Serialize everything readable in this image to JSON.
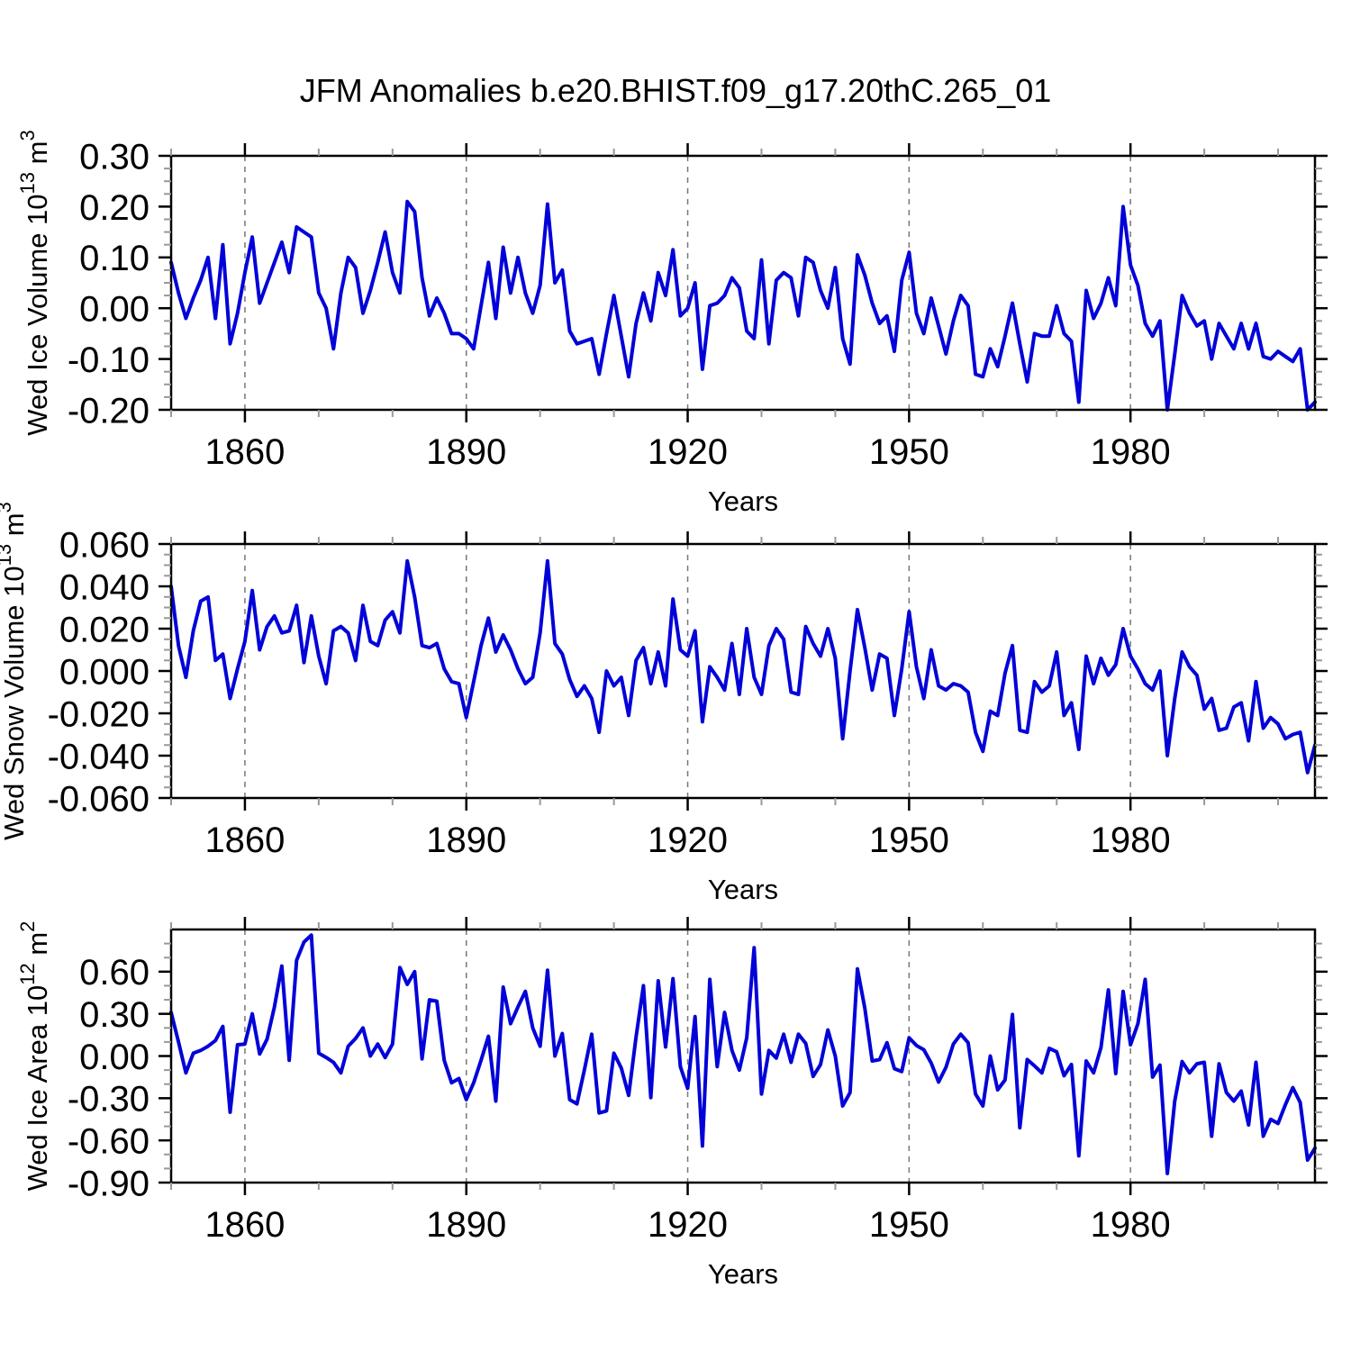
{
  "title": "JFM Anomalies b.e20.BHIST.f09_g17.20thC.265_01",
  "colors": {
    "line": "#0202d8",
    "frame": "#000000",
    "grid": "#777777",
    "minor_tick": "#999999",
    "text": "#000000"
  },
  "x_axis": {
    "label": "Years",
    "start_year": 1850,
    "end_year": 2005,
    "major_ticks": [
      1860,
      1890,
      1920,
      1950,
      1980
    ],
    "minor_step": 10,
    "gridlines": true
  },
  "chart_data": [
    {
      "type": "line",
      "name": "wed-ice-volume",
      "ylabel_text": "Wed Ice Volume 10^13 m^3",
      "ylabel_parts": [
        {
          "text": "Wed Ice Volume 10",
          "sup": false
        },
        {
          "text": "13",
          "sup": true
        },
        {
          "text": " m",
          "sup": false
        },
        {
          "text": "3",
          "sup": true
        }
      ],
      "ylim": [
        -0.2,
        0.3
      ],
      "ymajor": 0.1,
      "yminor": 0.025,
      "ytick_labels": [
        "0.30",
        "0.20",
        "0.10",
        "0.00",
        "-0.10",
        "-0.20"
      ],
      "xlabel": "Years",
      "values": [
        0.09,
        0.03,
        -0.02,
        0.02,
        0.055,
        0.1,
        -0.02,
        0.125,
        -0.07,
        -0.01,
        0.07,
        0.14,
        0.01,
        0.05,
        0.09,
        0.13,
        0.07,
        0.16,
        0.15,
        0.14,
        0.03,
        0,
        -0.08,
        0.03,
        0.1,
        0.08,
        -0.01,
        0.035,
        0.09,
        0.15,
        0.07,
        0.03,
        0.21,
        0.19,
        0.06,
        -0.015,
        0.02,
        -0.01,
        -0.05,
        -0.05,
        -0.06,
        -0.08,
        0.005,
        0.09,
        -0.02,
        0.12,
        0.03,
        0.1,
        0.03,
        -0.01,
        0.045,
        0.205,
        0.05,
        0.075,
        -0.045,
        -0.07,
        -0.065,
        -0.06,
        -0.13,
        -0.05,
        0.025,
        -0.055,
        -0.135,
        -0.03,
        0.03,
        -0.025,
        0.07,
        0.025,
        0.115,
        -0.015,
        0,
        0.05,
        -0.12,
        0.005,
        0.01,
        0.025,
        0.06,
        0.04,
        -0.045,
        -0.06,
        0.095,
        -0.07,
        0.055,
        0.07,
        0.06,
        -0.015,
        0.1,
        0.09,
        0.035,
        0,
        0.08,
        -0.06,
        -0.11,
        0.105,
        0.065,
        0.01,
        -0.03,
        -0.015,
        -0.085,
        0.055,
        0.11,
        -0.01,
        -0.05,
        0.02,
        -0.035,
        -0.09,
        -0.025,
        0.025,
        0.005,
        -0.13,
        -0.135,
        -0.08,
        -0.115,
        -0.055,
        0.01,
        -0.07,
        -0.145,
        -0.05,
        -0.055,
        -0.055,
        0.005,
        -0.05,
        -0.065,
        -0.185,
        0.035,
        -0.02,
        0.01,
        0.06,
        0.005,
        0.2,
        0.085,
        0.045,
        -0.03,
        -0.055,
        -0.025,
        -0.2,
        -0.09,
        0.025,
        -0.01,
        -0.035,
        -0.025,
        -0.1,
        -0.03,
        -0.055,
        -0.08,
        -0.03,
        -0.08,
        -0.03,
        -0.095,
        -0.1,
        -0.085,
        -0.095,
        -0.105,
        -0.08,
        -0.2,
        -0.185
      ]
    },
    {
      "type": "line",
      "name": "wed-snow-volume",
      "ylabel_text": "Wed Snow Volume 10^13 m^3",
      "ylabel_parts": [
        {
          "text": "Wed Snow Volume 10",
          "sup": false
        },
        {
          "text": "13",
          "sup": true
        },
        {
          "text": " m",
          "sup": false
        },
        {
          "text": "3",
          "sup": true
        }
      ],
      "ylim": [
        -0.06,
        0.06
      ],
      "ymajor": 0.02,
      "yminor": 0.005,
      "ytick_labels": [
        "0.060",
        "0.040",
        "0.020",
        "0.000",
        "-0.020",
        "-0.040",
        "-0.060"
      ],
      "xlabel": "Years",
      "values": [
        0.04,
        0.012,
        -0.003,
        0.019,
        0.033,
        0.035,
        0.005,
        0.008,
        -0.013,
        0.001,
        0.014,
        0.038,
        0.01,
        0.021,
        0.026,
        0.018,
        0.019,
        0.031,
        0.004,
        0.026,
        0.007,
        -0.006,
        0.019,
        0.021,
        0.018,
        0.005,
        0.031,
        0.014,
        0.012,
        0.024,
        0.028,
        0.018,
        0.052,
        0.035,
        0.012,
        0.011,
        0.013,
        0.001,
        -0.005,
        -0.006,
        -0.022,
        -0.005,
        0.012,
        0.025,
        0.009,
        0.017,
        0.01,
        0.001,
        -0.006,
        -0.003,
        0.018,
        0.052,
        0.013,
        0.008,
        -0.004,
        -0.012,
        -0.007,
        -0.013,
        -0.029,
        0,
        -0.007,
        -0.003,
        -0.021,
        0.005,
        0.011,
        -0.006,
        0.009,
        -0.007,
        0.034,
        0.01,
        0.007,
        0.019,
        -0.024,
        0.002,
        -0.003,
        -0.009,
        0.013,
        -0.011,
        0.02,
        -0.003,
        -0.011,
        0.012,
        0.02,
        0.015,
        -0.01,
        -0.011,
        0.021,
        0.013,
        0.007,
        0.02,
        0.006,
        -0.032,
        0,
        0.029,
        0.011,
        -0.009,
        0.008,
        0.006,
        -0.021,
        0.001,
        0.028,
        0.002,
        -0.013,
        0.01,
        -0.007,
        -0.009,
        -0.006,
        -0.007,
        -0.01,
        -0.029,
        -0.038,
        -0.019,
        -0.021,
        -0.001,
        0.012,
        -0.028,
        -0.029,
        -0.005,
        -0.01,
        -0.007,
        0.009,
        -0.021,
        -0.015,
        -0.037,
        0.007,
        -0.006,
        0.006,
        -0.002,
        0.003,
        0.02,
        0.007,
        0.001,
        -0.006,
        -0.009,
        0,
        -0.04,
        -0.013,
        0.009,
        0.002,
        -0.002,
        -0.018,
        -0.013,
        -0.028,
        -0.027,
        -0.017,
        -0.015,
        -0.033,
        -0.005,
        -0.027,
        -0.022,
        -0.025,
        -0.032,
        -0.03,
        -0.029,
        -0.048,
        -0.035
      ]
    },
    {
      "type": "line",
      "name": "wed-ice-area",
      "ylabel_text": "Wed Ice Area 10^12 m^2",
      "ylabel_parts": [
        {
          "text": "Wed Ice Area 10",
          "sup": false
        },
        {
          "text": "12",
          "sup": true
        },
        {
          "text": " m",
          "sup": false
        },
        {
          "text": "2",
          "sup": true
        }
      ],
      "ylim": [
        -0.9,
        0.9
      ],
      "ymajor": 0.3,
      "yminor": 0.1,
      "ytick_labels": [
        "0.60",
        "0.30",
        "0.00",
        "-0.30",
        "-0.60",
        "-0.90"
      ],
      "xlabel": "Years",
      "values": [
        0.31,
        0.1,
        -0.12,
        0.02,
        0.04,
        0.07,
        0.11,
        0.21,
        -0.4,
        0.08,
        0.085,
        0.3,
        0.015,
        0.12,
        0.35,
        0.64,
        -0.03,
        0.68,
        0.81,
        0.86,
        0.02,
        -0.01,
        -0.045,
        -0.12,
        0.07,
        0.125,
        0.2,
        0,
        0.085,
        -0.01,
        0.085,
        0.63,
        0.51,
        0.6,
        -0.02,
        0.4,
        0.39,
        -0.03,
        -0.19,
        -0.16,
        -0.31,
        -0.19,
        -0.03,
        0.14,
        -0.32,
        0.49,
        0.23,
        0.35,
        0.46,
        0.2,
        0.07,
        0.61,
        0,
        0.16,
        -0.31,
        -0.34,
        -0.1,
        0.155,
        -0.405,
        -0.39,
        0.02,
        -0.085,
        -0.28,
        0.135,
        0.5,
        -0.295,
        0.535,
        0.065,
        0.55,
        -0.075,
        -0.23,
        0.28,
        -0.64,
        0.545,
        -0.075,
        0.31,
        0.04,
        -0.1,
        0.13,
        0.77,
        -0.27,
        0.04,
        -0.015,
        0.155,
        -0.045,
        0.155,
        0.09,
        -0.145,
        -0.06,
        0.185,
        0,
        -0.355,
        -0.26,
        0.62,
        0.34,
        -0.035,
        -0.025,
        0.095,
        -0.09,
        -0.11,
        0.13,
        0.075,
        0.045,
        -0.05,
        -0.185,
        -0.08,
        0.085,
        0.155,
        0.095,
        -0.27,
        -0.355,
        0,
        -0.24,
        -0.17,
        0.295,
        -0.51,
        -0.025,
        -0.07,
        -0.12,
        0.055,
        0.03,
        -0.14,
        -0.06,
        -0.71,
        -0.035,
        -0.12,
        0.06,
        0.47,
        -0.125,
        0.46,
        0.08,
        0.23,
        0.545,
        -0.15,
        -0.065,
        -0.835,
        -0.32,
        -0.04,
        -0.12,
        -0.055,
        -0.045,
        -0.57,
        -0.055,
        -0.26,
        -0.32,
        -0.25,
        -0.49,
        -0.045,
        -0.57,
        -0.45,
        -0.48,
        -0.345,
        -0.225,
        -0.33,
        -0.74,
        -0.655
      ]
    }
  ]
}
